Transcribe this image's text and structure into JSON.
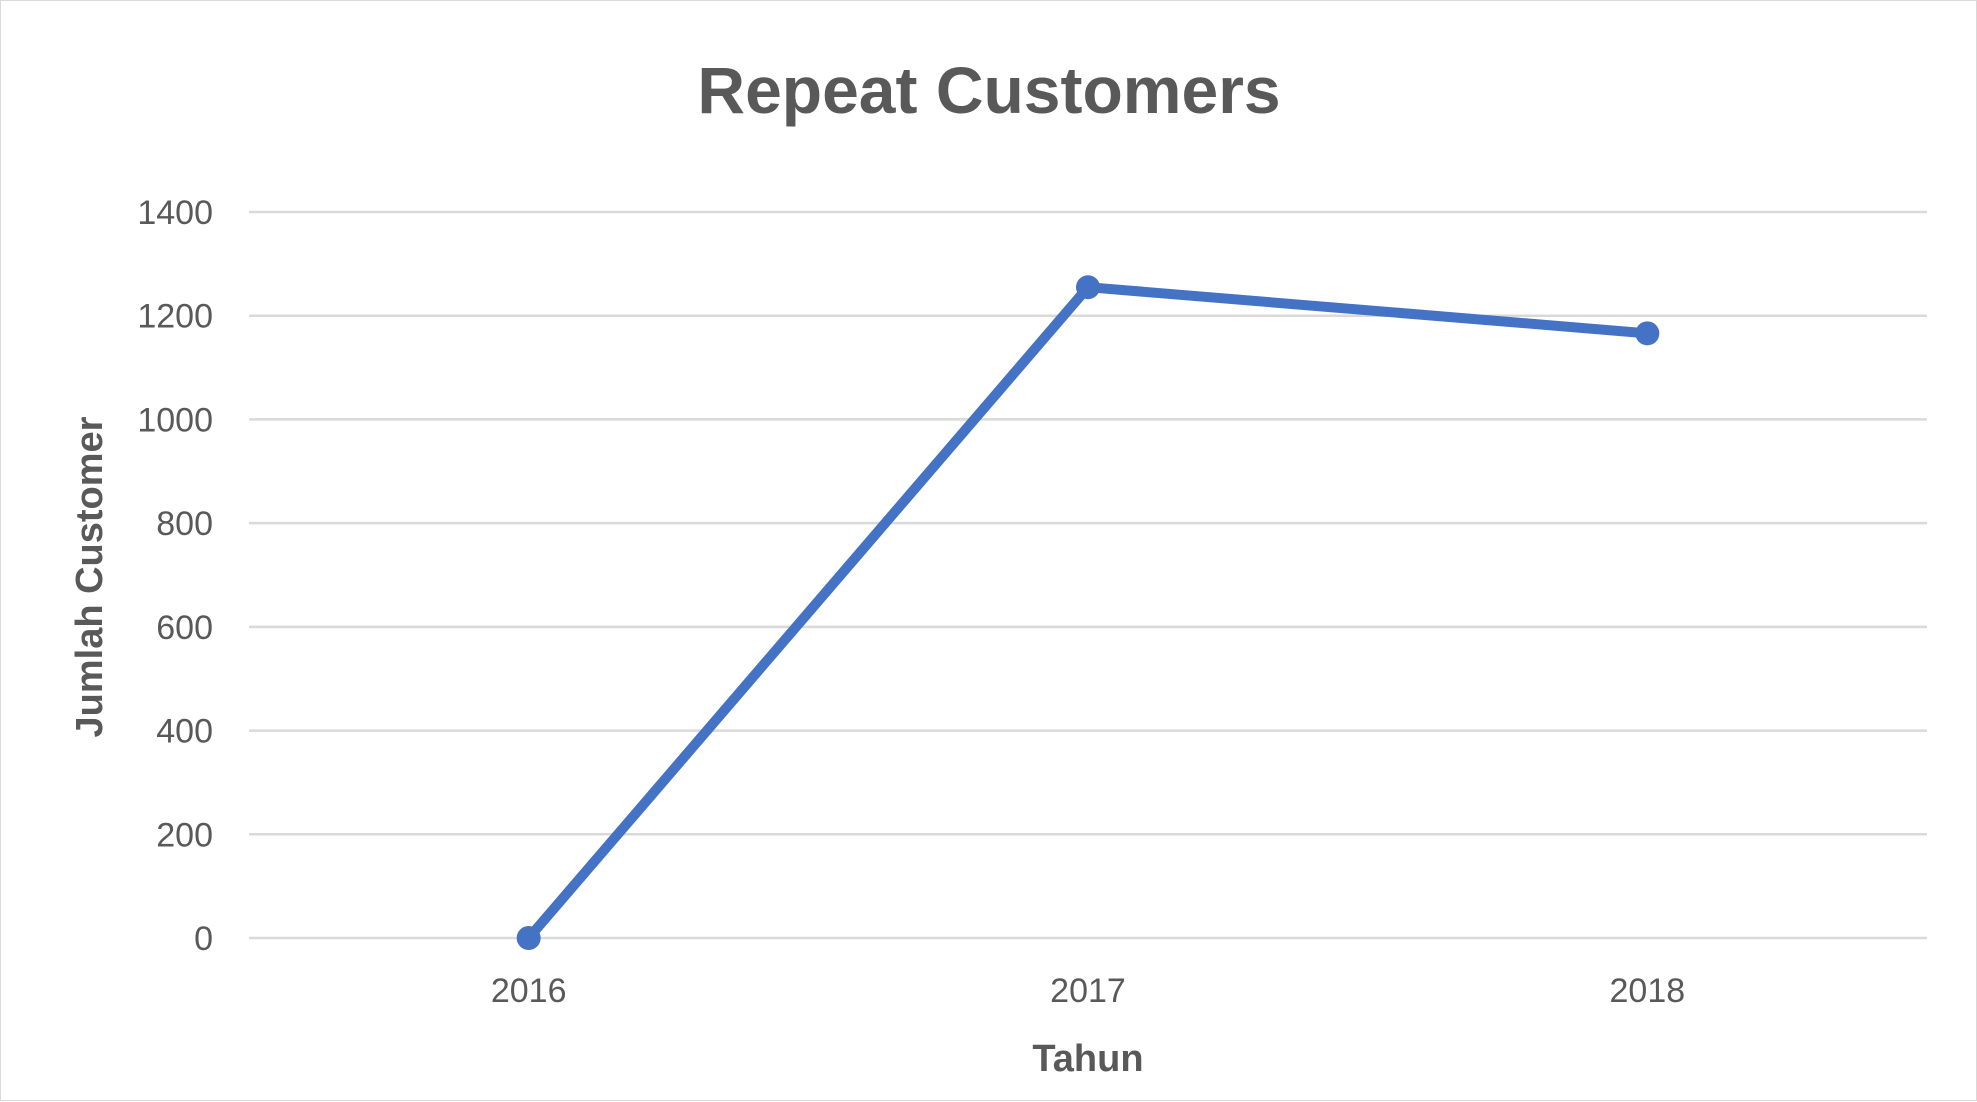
{
  "chart_data": {
    "type": "line",
    "title": "Repeat Customers",
    "xlabel": "Tahun",
    "ylabel": "Jumlah Customer",
    "categories": [
      "2016",
      "2017",
      "2018"
    ],
    "series": [
      {
        "values": [
          0,
          1255,
          1166
        ],
        "color": "#4472c4"
      }
    ],
    "ylim": [
      0,
      1400
    ],
    "yticks": [
      "0",
      "200",
      "400",
      "600",
      "800",
      "1000",
      "1200",
      "1400"
    ],
    "grid": true,
    "markers": true
  }
}
